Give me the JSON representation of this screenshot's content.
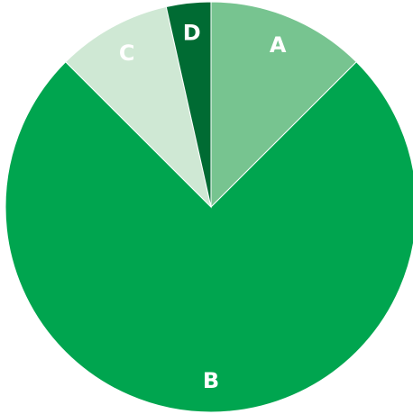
{
  "chart_data": {
    "type": "pie",
    "categories": [
      "A",
      "B",
      "C",
      "D"
    ],
    "values": [
      12.5,
      75,
      9,
      3.5
    ],
    "colors": [
      "#77c490",
      "#00a54f",
      "#cfe8d4",
      "#006b33"
    ]
  }
}
